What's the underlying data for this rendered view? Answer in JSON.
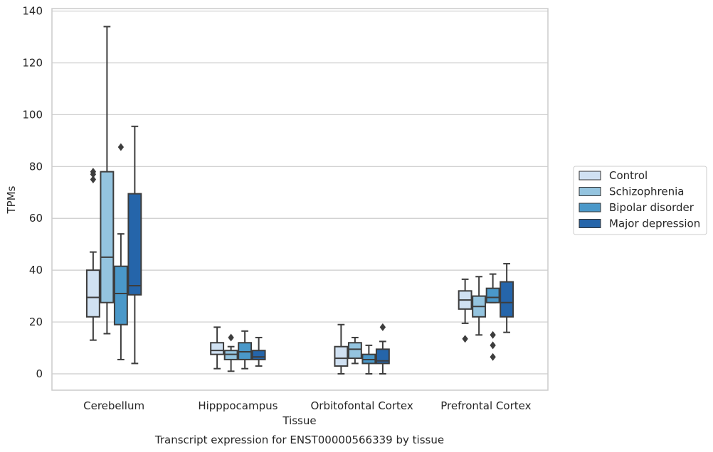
{
  "chart_data": {
    "type": "box",
    "title": "",
    "caption": "Transcript expression for ENST00000566339 by tissue",
    "xlabel": "Tissue",
    "ylabel": "TPMs",
    "ylim": [
      -6.5,
      141
    ],
    "yticks": [
      0,
      20,
      40,
      60,
      80,
      100,
      120,
      140
    ],
    "grid": "horizontal",
    "legend_position": "right",
    "categories": [
      "Cerebellum",
      "Hipppocampus",
      "Orbitofontal Cortex",
      "Prefrontal Cortex"
    ],
    "series": [
      {
        "name": "Control",
        "color": "#d0e1f2",
        "boxes": [
          {
            "whislo": 13,
            "q1": 22,
            "med": 29.5,
            "q3": 40,
            "whishi": 47,
            "fliers": [
              75,
              77,
              78
            ]
          },
          {
            "whislo": 2,
            "q1": 7.5,
            "med": 9,
            "q3": 12,
            "whishi": 18,
            "fliers": []
          },
          {
            "whislo": 0,
            "q1": 3,
            "med": 6,
            "q3": 10.5,
            "whishi": 19,
            "fliers": []
          },
          {
            "whislo": 19.5,
            "q1": 25,
            "med": 28.5,
            "q3": 32,
            "whishi": 36.5,
            "fliers": [
              13.5
            ]
          }
        ]
      },
      {
        "name": "Schizophrenia",
        "color": "#94c4df",
        "boxes": [
          {
            "whislo": 15.5,
            "q1": 27.5,
            "med": 45,
            "q3": 78,
            "whishi": 134,
            "fliers": []
          },
          {
            "whislo": 1,
            "q1": 5.5,
            "med": 7.5,
            "q3": 9,
            "whishi": 10.5,
            "fliers": [
              14
            ]
          },
          {
            "whislo": 4,
            "q1": 6,
            "med": 9.5,
            "q3": 12,
            "whishi": 14,
            "fliers": []
          },
          {
            "whislo": 15,
            "q1": 22,
            "med": 26,
            "q3": 30,
            "whishi": 37.5,
            "fliers": []
          }
        ]
      },
      {
        "name": "Bipolar disorder",
        "color": "#4a98c9",
        "boxes": [
          {
            "whislo": 5.5,
            "q1": 19,
            "med": 31,
            "q3": 41.5,
            "whishi": 54,
            "fliers": [
              87.5
            ]
          },
          {
            "whislo": 2,
            "q1": 5.5,
            "med": 8.5,
            "q3": 12,
            "whishi": 16.5,
            "fliers": []
          },
          {
            "whislo": 0,
            "q1": 4,
            "med": 5.5,
            "q3": 7.5,
            "whishi": 11,
            "fliers": []
          },
          {
            "whislo": 27.5,
            "q1": 27.5,
            "med": 29.5,
            "q3": 33,
            "whishi": 38.5,
            "fliers": [
              15,
              11,
              6.5
            ]
          }
        ]
      },
      {
        "name": "Major depression",
        "color": "#2565aa",
        "boxes": [
          {
            "whislo": 4,
            "q1": 30.5,
            "med": 34,
            "q3": 69.5,
            "whishi": 95.5,
            "fliers": []
          },
          {
            "whislo": 3,
            "q1": 5.5,
            "med": 6.5,
            "q3": 9,
            "whishi": 14,
            "fliers": []
          },
          {
            "whislo": 0,
            "q1": 4,
            "med": 5,
            "q3": 9.5,
            "whishi": 12.5,
            "fliers": [
              18
            ]
          },
          {
            "whislo": 16,
            "q1": 22,
            "med": 27.5,
            "q3": 35.5,
            "whishi": 42.5,
            "fliers": []
          }
        ]
      }
    ]
  }
}
